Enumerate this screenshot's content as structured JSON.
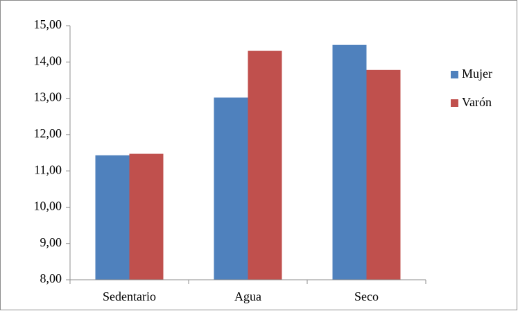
{
  "chart_data": {
    "type": "bar",
    "categories": [
      "Sedentario",
      "Agua",
      "Seco"
    ],
    "series": [
      {
        "name": "Mujer",
        "color": "#4f81bd",
        "values": [
          11.43,
          13.02,
          14.47
        ]
      },
      {
        "name": "Varón",
        "color": "#c0504d",
        "values": [
          11.47,
          14.31,
          13.78
        ]
      }
    ],
    "ylim": [
      8,
      15
    ],
    "yticks": [
      {
        "value": 8,
        "label": "8,00"
      },
      {
        "value": 9,
        "label": "9,00"
      },
      {
        "value": 10,
        "label": "10,00"
      },
      {
        "value": 11,
        "label": "11,00"
      },
      {
        "value": 12,
        "label": "12,00"
      },
      {
        "value": 13,
        "label": "13,00"
      },
      {
        "value": 14,
        "label": "14,00"
      },
      {
        "value": 15,
        "label": "15,00"
      }
    ],
    "grid": false,
    "legend": "right"
  }
}
